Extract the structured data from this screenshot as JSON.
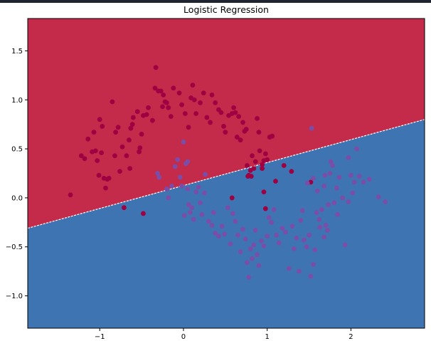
{
  "chart_data": {
    "type": "scatter",
    "title": "Logistic Regression",
    "xlim": [
      -1.86,
      2.88
    ],
    "ylim": [
      -1.33,
      1.83
    ],
    "xticks": [
      -1,
      0,
      1,
      2
    ],
    "xtick_labels": [
      "−1",
      "0",
      "1",
      "2"
    ],
    "yticks": [
      -1.0,
      -0.5,
      0.0,
      0.5,
      1.0,
      1.5
    ],
    "ytick_labels": [
      "−1.0",
      "−0.5",
      "0.0",
      "0.5",
      "1.0",
      "1.5"
    ],
    "colors": {
      "red_region": "#c42a4a",
      "blue_region": "#3f74b2",
      "class0_point": "#9e0142",
      "class1_point": "#7a4ea8",
      "boundary": "#ffffff",
      "axes_border": "#000000"
    },
    "decision_boundary": {
      "x": [
        -1.86,
        2.88
      ],
      "y": [
        -0.31,
        0.8
      ]
    },
    "series": [
      {
        "label": 0,
        "color": "#9e0142",
        "points": [
          [
            -1.35,
            0.03
          ],
          [
            -1.22,
            0.43
          ],
          [
            -1.18,
            0.4
          ],
          [
            -1.14,
            0.6
          ],
          [
            -1.09,
            0.47
          ],
          [
            -1.07,
            0.67
          ],
          [
            -1.05,
            0.48
          ],
          [
            -1.03,
            0.38
          ],
          [
            -1.01,
            0.23
          ],
          [
            -1.0,
            0.8
          ],
          [
            -0.98,
            0.46
          ],
          [
            -0.97,
            0.73
          ],
          [
            -0.95,
            0.2
          ],
          [
            -0.93,
            0.1
          ],
          [
            -0.91,
            0.19
          ],
          [
            -0.89,
            0.2
          ],
          [
            -0.85,
            0.98
          ],
          [
            -0.82,
            0.43
          ],
          [
            -0.81,
            0.67
          ],
          [
            -0.78,
            0.72
          ],
          [
            -0.76,
            0.27
          ],
          [
            -0.73,
            0.52
          ],
          [
            -0.68,
            0.43
          ],
          [
            -0.65,
            0.59
          ],
          [
            -0.64,
            0.3
          ],
          [
            -0.63,
            0.71
          ],
          [
            -0.61,
            0.75
          ],
          [
            -0.6,
            0.82
          ],
          [
            -0.55,
            0.88
          ],
          [
            -0.53,
            0.47
          ],
          [
            -0.52,
            0.51
          ],
          [
            -0.5,
            0.65
          ],
          [
            -0.48,
            0.84
          ],
          [
            -0.44,
            0.85
          ],
          [
            -0.42,
            0.92
          ],
          [
            -0.37,
            0.79
          ],
          [
            -0.34,
            1.12
          ],
          [
            -0.33,
            1.33
          ],
          [
            -0.3,
            1.09
          ],
          [
            -0.27,
            1.09
          ],
          [
            -0.25,
            0.93
          ],
          [
            -0.24,
            1.05
          ],
          [
            -0.22,
            0.98
          ],
          [
            -0.2,
            0.97
          ],
          [
            -0.18,
            0.92
          ],
          [
            -0.15,
            0.83
          ],
          [
            -0.12,
            1.12
          ],
          [
            -0.05,
            1.07
          ],
          [
            -0.02,
            0.95
          ],
          [
            0.02,
            0.86
          ],
          [
            0.06,
            0.72
          ],
          [
            0.09,
            1.02
          ],
          [
            0.11,
            1.15
          ],
          [
            0.13,
            1.0
          ],
          [
            0.15,
            0.86
          ],
          [
            0.2,
            0.97
          ],
          [
            0.24,
            1.07
          ],
          [
            0.28,
            0.82
          ],
          [
            0.32,
            0.77
          ],
          [
            0.34,
            1.05
          ],
          [
            0.38,
            0.97
          ],
          [
            0.42,
            0.9
          ],
          [
            0.45,
            0.87
          ],
          [
            0.48,
            0.73
          ],
          [
            0.5,
            0.67
          ],
          [
            0.54,
            0.84
          ],
          [
            0.58,
            0.86
          ],
          [
            0.6,
            0.92
          ],
          [
            0.62,
            0.87
          ],
          [
            0.64,
            0.62
          ],
          [
            0.66,
            0.83
          ],
          [
            0.68,
            0.59
          ],
          [
            0.71,
            0.77
          ],
          [
            0.73,
            0.68
          ],
          [
            0.75,
            0.7
          ],
          [
            0.76,
            0.33
          ],
          [
            0.77,
            0.22
          ],
          [
            0.78,
            0.23
          ],
          [
            0.82,
            0.43
          ],
          [
            0.84,
            0.3
          ],
          [
            0.86,
            0.37
          ],
          [
            0.88,
            0.81
          ],
          [
            0.9,
            0.67
          ],
          [
            0.91,
            0.48
          ],
          [
            0.94,
            0.34
          ],
          [
            0.96,
            0.38
          ],
          [
            0.98,
            0.45
          ],
          [
            1.0,
            0.39
          ],
          [
            1.03,
            0.62
          ],
          [
            1.06,
            0.63
          ],
          [
            -0.71,
            -0.1
          ],
          [
            -0.48,
            -0.16
          ],
          [
            0.58,
            0.0
          ],
          [
            0.81,
            0.22
          ],
          [
            0.96,
            0.06
          ],
          [
            0.98,
            -0.11
          ],
          [
            1.1,
            0.17
          ],
          [
            1.2,
            0.33
          ],
          [
            1.29,
            0.27
          ],
          [
            1.52,
            0.16
          ],
          [
            0.94,
            0.3
          ],
          [
            0.8,
            0.28
          ]
        ]
      },
      {
        "label": 1,
        "color": "#7a4ea8",
        "points": [
          [
            -0.31,
            0.25
          ],
          [
            -0.29,
            0.21
          ],
          [
            -0.2,
            0.09
          ],
          [
            -0.14,
            0.12
          ],
          [
            -0.1,
            0.32
          ],
          [
            -0.07,
            0.39
          ],
          [
            -0.04,
            0.21
          ],
          [
            -0.02,
            0.12
          ],
          [
            0.01,
            -0.18
          ],
          [
            0.03,
            0.35
          ],
          [
            0.05,
            0.09
          ],
          [
            0.06,
            -0.07
          ],
          [
            0.08,
            -0.15
          ],
          [
            0.1,
            -0.1
          ],
          [
            0.12,
            -0.22
          ],
          [
            0.15,
            0.06
          ],
          [
            0.18,
            0.11
          ],
          [
            0.22,
            -0.17
          ],
          [
            0.26,
            0.24
          ],
          [
            0.3,
            -0.24
          ],
          [
            0.34,
            -0.28
          ],
          [
            0.38,
            -0.36
          ],
          [
            0.42,
            -0.39
          ],
          [
            0.46,
            -0.29
          ],
          [
            0.49,
            -0.37
          ],
          [
            0.53,
            -0.1
          ],
          [
            0.56,
            -0.47
          ],
          [
            0.59,
            -0.16
          ],
          [
            0.62,
            -0.24
          ],
          [
            0.65,
            -0.38
          ],
          [
            0.68,
            -0.55
          ],
          [
            0.71,
            -0.32
          ],
          [
            0.74,
            -0.42
          ],
          [
            0.76,
            -0.66
          ],
          [
            0.78,
            -0.81
          ],
          [
            0.8,
            -0.52
          ],
          [
            0.82,
            -0.62
          ],
          [
            0.84,
            -0.48
          ],
          [
            0.86,
            -0.33
          ],
          [
            0.88,
            -0.58
          ],
          [
            0.9,
            -0.69
          ],
          [
            0.93,
            -0.44
          ],
          [
            0.96,
            -0.49
          ],
          [
            1.0,
            -0.39
          ],
          [
            1.02,
            -0.2
          ],
          [
            1.05,
            -0.25
          ],
          [
            1.08,
            -0.12
          ],
          [
            1.11,
            -0.38
          ],
          [
            1.14,
            -0.46
          ],
          [
            1.18,
            -0.31
          ],
          [
            1.22,
            -0.35
          ],
          [
            1.26,
            -0.72
          ],
          [
            1.3,
            -0.29
          ],
          [
            1.32,
            -0.52
          ],
          [
            1.35,
            -0.41
          ],
          [
            1.38,
            -0.75
          ],
          [
            1.4,
            -0.23
          ],
          [
            1.42,
            -0.13
          ],
          [
            1.44,
            -0.43
          ],
          [
            1.47,
            -0.5
          ],
          [
            1.5,
            -0.38
          ],
          [
            1.52,
            -0.8
          ],
          [
            1.55,
            -0.68
          ],
          [
            1.57,
            -0.53
          ],
          [
            1.59,
            -0.15
          ],
          [
            1.62,
            -0.22
          ],
          [
            1.65,
            -0.12
          ],
          [
            1.68,
            -0.4
          ],
          [
            1.7,
            -0.28
          ],
          [
            1.72,
            -0.33
          ],
          [
            1.75,
            0.25
          ],
          [
            1.78,
            0.33
          ],
          [
            1.8,
            -0.05
          ],
          [
            1.83,
            0.1
          ],
          [
            1.86,
            0.21
          ],
          [
            1.9,
            0.0
          ],
          [
            1.93,
            -0.48
          ],
          [
            1.97,
            0.41
          ],
          [
            2.0,
            0.23
          ],
          [
            2.02,
            0.05
          ],
          [
            2.04,
            0.16
          ],
          [
            2.07,
            0.5
          ],
          [
            2.1,
            0.22
          ],
          [
            2.15,
            0.16
          ],
          [
            2.22,
            0.19
          ],
          [
            2.33,
            0.01
          ],
          [
            2.41,
            -0.04
          ],
          [
            1.53,
            0.71
          ],
          [
            1.76,
            0.37
          ],
          [
            1.55,
            0.2
          ],
          [
            1.48,
            0.15
          ],
          [
            1.6,
            0.07
          ],
          [
            1.68,
            0.12
          ],
          [
            1.73,
            -0.07
          ],
          [
            1.69,
            0.23
          ],
          [
            1.97,
            -0.04
          ],
          [
            0.0,
            0.57
          ],
          [
            0.05,
            0.37
          ],
          [
            0.36,
            -0.15
          ],
          [
            0.2,
            -0.05
          ],
          [
            0.25,
            0.05
          ],
          [
            -0.18,
            0.0
          ],
          [
            1.84,
            -0.17
          ],
          [
            1.63,
            -0.3
          ]
        ]
      }
    ]
  }
}
